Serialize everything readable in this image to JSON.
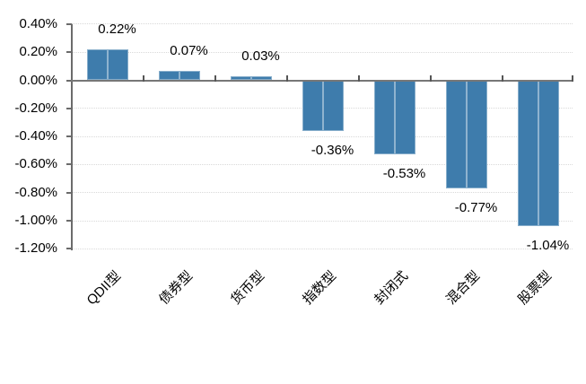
{
  "chart_data": {
    "type": "bar",
    "title": "",
    "xlabel": "",
    "ylabel": "",
    "categories": [
      "QDII型",
      "债券型",
      "货币型",
      "指数型",
      "封闭式",
      "混合型",
      "股票型"
    ],
    "values": [
      0.22,
      0.07,
      0.03,
      -0.36,
      -0.53,
      -0.77,
      -1.04
    ],
    "data_labels": [
      "0.22%",
      "0.07%",
      "0.03%",
      "-0.36%",
      "-0.53%",
      "-0.77%",
      "-1.04%"
    ],
    "y_axis": {
      "min": -1.2,
      "max": 0.4,
      "step": 0.2,
      "tick_values": [
        0.4,
        0.2,
        0.0,
        -0.2,
        -0.4,
        -0.6,
        -0.8,
        -1.0,
        -1.2
      ],
      "tick_labels": [
        "0.40%",
        "0.20%",
        "0.00%",
        "-0.20%",
        "-0.40%",
        "-0.60%",
        "-0.80%",
        "-1.00%",
        "-1.20%"
      ]
    },
    "grid": "horizontal-dotted",
    "legend": "none",
    "bar_label_position": "outside-end",
    "category_label_rotation_deg": 45,
    "colors": {
      "bar_fill": "#3E7CAC",
      "bar_highlight": "#7FA8CC",
      "axis_line": "#6B6B6B",
      "zero_line": "#777777",
      "gridline": "#D9D9D9",
      "text": "#000000",
      "background": "#FFFFFF"
    }
  }
}
